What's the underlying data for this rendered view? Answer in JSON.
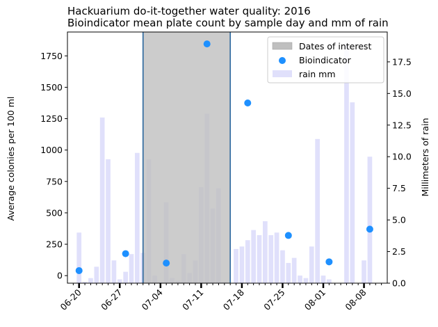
{
  "chart_data": {
    "type": "bar",
    "title_line1": "Hackuarium do-it-together water quality: 2016",
    "title_line2": "Bioindicator mean plate count by sample day and mm of rain",
    "ylabel_left": "Average colonies per 100 ml",
    "ylabel_right": "Millimeters of rain",
    "x_start": "06-18",
    "x_end": "08-12",
    "x_ticks": [
      "06-20",
      "06-27",
      "07-04",
      "07-11",
      "07-18",
      "07-25",
      "08-01",
      "08-08"
    ],
    "ylim_left": [
      -60,
      1940
    ],
    "yticks_left": [
      0,
      250,
      500,
      750,
      1000,
      1250,
      1500,
      1750
    ],
    "ylim_right": [
      0,
      19.86
    ],
    "yticks_right": [
      "0.0",
      "2.5",
      "5.0",
      "7.5",
      "10.0",
      "12.5",
      "15.0",
      "17.5"
    ],
    "interval": {
      "name": "Dates of interest",
      "start": "07-01",
      "end": "07-16"
    },
    "legend": [
      "Dates of interest",
      "Bioindicator",
      "rain mm"
    ],
    "legend_position": "top-right",
    "colors": {
      "interval": "#bfbfbf",
      "points": "#1e90ff",
      "rain": "#e0e0fb",
      "span_edge": "#1f5f99"
    },
    "series": [
      {
        "name": "Bioindicator",
        "kind": "scatter",
        "points": [
          {
            "date": "06-20",
            "value": 40
          },
          {
            "date": "06-28",
            "value": 175
          },
          {
            "date": "07-05",
            "value": 100
          },
          {
            "date": "07-12",
            "value": 1845
          },
          {
            "date": "07-19",
            "value": 1375
          },
          {
            "date": "07-26",
            "value": 320
          },
          {
            "date": "08-02",
            "value": 110
          },
          {
            "date": "08-09",
            "value": 370
          }
        ]
      },
      {
        "name": "rain mm",
        "kind": "bar",
        "points": [
          {
            "date": "06-20",
            "value": 4.0
          },
          {
            "date": "06-21",
            "value": 0.1
          },
          {
            "date": "06-22",
            "value": 0.4
          },
          {
            "date": "06-23",
            "value": 1.3
          },
          {
            "date": "06-24",
            "value": 13.1
          },
          {
            "date": "06-25",
            "value": 9.8
          },
          {
            "date": "06-26",
            "value": 1.8
          },
          {
            "date": "06-27",
            "value": 0.3
          },
          {
            "date": "06-28",
            "value": 0.9
          },
          {
            "date": "06-29",
            "value": 2.3
          },
          {
            "date": "06-30",
            "value": 10.3
          },
          {
            "date": "07-01",
            "value": 2.4
          },
          {
            "date": "07-02",
            "value": 9.8
          },
          {
            "date": "07-03",
            "value": 0.6
          },
          {
            "date": "07-04",
            "value": 0.1
          },
          {
            "date": "07-05",
            "value": 6.4
          },
          {
            "date": "07-06",
            "value": 0.4
          },
          {
            "date": "07-07",
            "value": 0.2
          },
          {
            "date": "07-08",
            "value": 2.3
          },
          {
            "date": "07-09",
            "value": 0.8
          },
          {
            "date": "07-10",
            "value": 1.8
          },
          {
            "date": "07-11",
            "value": 7.6
          },
          {
            "date": "07-12",
            "value": 13.4
          },
          {
            "date": "07-13",
            "value": 5.9
          },
          {
            "date": "07-14",
            "value": 7.5
          },
          {
            "date": "07-15",
            "value": 0.1
          },
          {
            "date": "07-17",
            "value": 2.7
          },
          {
            "date": "07-18",
            "value": 2.9
          },
          {
            "date": "07-19",
            "value": 3.4
          },
          {
            "date": "07-20",
            "value": 4.2
          },
          {
            "date": "07-21",
            "value": 3.8
          },
          {
            "date": "07-22",
            "value": 4.9
          },
          {
            "date": "07-23",
            "value": 3.8
          },
          {
            "date": "07-24",
            "value": 4.0
          },
          {
            "date": "07-25",
            "value": 2.6
          },
          {
            "date": "07-26",
            "value": 1.6
          },
          {
            "date": "07-27",
            "value": 2.0
          },
          {
            "date": "07-28",
            "value": 0.6
          },
          {
            "date": "07-29",
            "value": 0.4
          },
          {
            "date": "07-30",
            "value": 2.9
          },
          {
            "date": "07-31",
            "value": 11.4
          },
          {
            "date": "08-01",
            "value": 0.6
          },
          {
            "date": "08-02",
            "value": 0.3
          },
          {
            "date": "08-05",
            "value": 18.9
          },
          {
            "date": "08-06",
            "value": 14.3
          },
          {
            "date": "08-08",
            "value": 1.8
          },
          {
            "date": "08-09",
            "value": 10.0
          }
        ]
      }
    ]
  }
}
